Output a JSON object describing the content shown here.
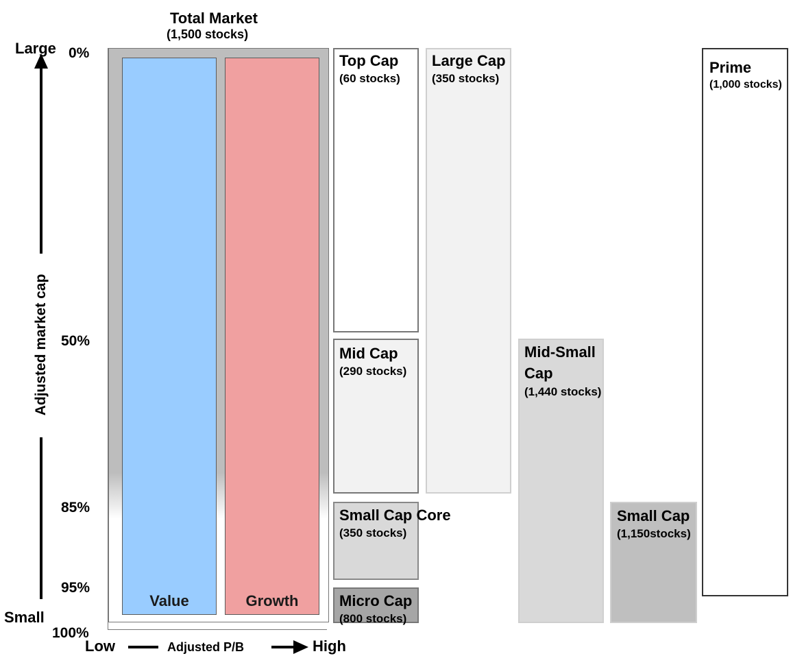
{
  "title": {
    "line1": "Total Market",
    "line2": "(1,500 stocks)"
  },
  "y_axis": {
    "label": "Adjusted market cap",
    "top_label": "Large",
    "bottom_label": "Small",
    "ticks": [
      "0%",
      "50%",
      "85%",
      "95%",
      "100%"
    ]
  },
  "x_axis": {
    "label": "Adjusted P/B",
    "low_label": "Low",
    "high_label": "High"
  },
  "bars": {
    "value": "Value",
    "growth": "Growth"
  },
  "segments": {
    "top_cap": {
      "name": "Top Cap",
      "count": "(60 stocks)"
    },
    "mid_cap": {
      "name": "Mid Cap",
      "count": "(290 stocks)"
    },
    "small_cap_core": {
      "name": "Small Cap Core",
      "count": "(350 stocks)"
    },
    "micro_cap": {
      "name": "Micro Cap",
      "count": "(800 stocks)"
    },
    "large_cap": {
      "name": "Large Cap",
      "count": "(350 stocks)"
    },
    "mid_small_cap": {
      "name_line1": "Mid-Small",
      "name_line2": "Cap",
      "count": "(1,440 stocks)"
    },
    "small_cap": {
      "name": "Small Cap",
      "count": "(1,150stocks)"
    },
    "prime": {
      "name": "Prime",
      "count": "(1,000 stocks)"
    }
  },
  "colors": {
    "value": "#99ccff",
    "growth": "#f0a0a0",
    "total_market_frame": "#bdbdbd"
  }
}
